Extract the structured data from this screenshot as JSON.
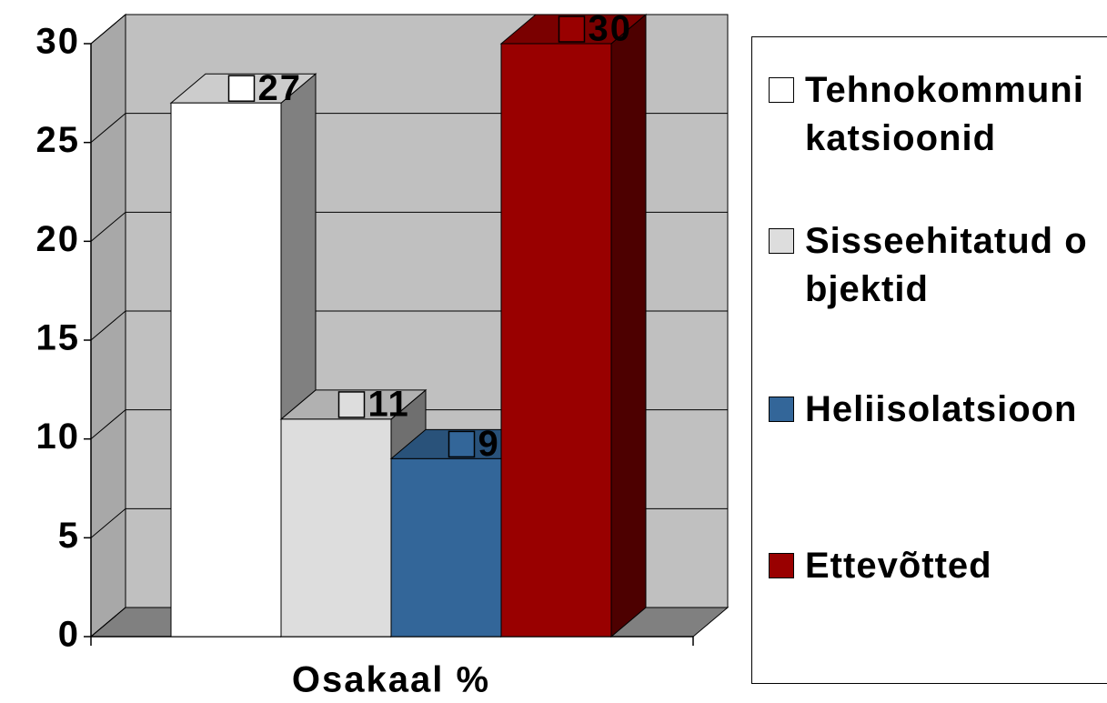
{
  "chart_data": {
    "type": "bar3d",
    "categories": [
      "Osakaal %"
    ],
    "series": [
      {
        "name": "Tehnokommunikatsioonid",
        "color": "#ffffff",
        "values": [
          27
        ]
      },
      {
        "name": "Sisseehitatud objektid",
        "color": "#dddddd",
        "values": [
          11
        ]
      },
      {
        "name": "Heliisolatsioon",
        "color": "#336699",
        "values": [
          9
        ]
      },
      {
        "name": "Ettevõtted",
        "color": "#990000",
        "values": [
          30
        ]
      }
    ],
    "ylim": [
      0,
      30
    ],
    "yticks": [
      0,
      5,
      10,
      15,
      20,
      25,
      30
    ],
    "grid": true,
    "legend": "right"
  }
}
